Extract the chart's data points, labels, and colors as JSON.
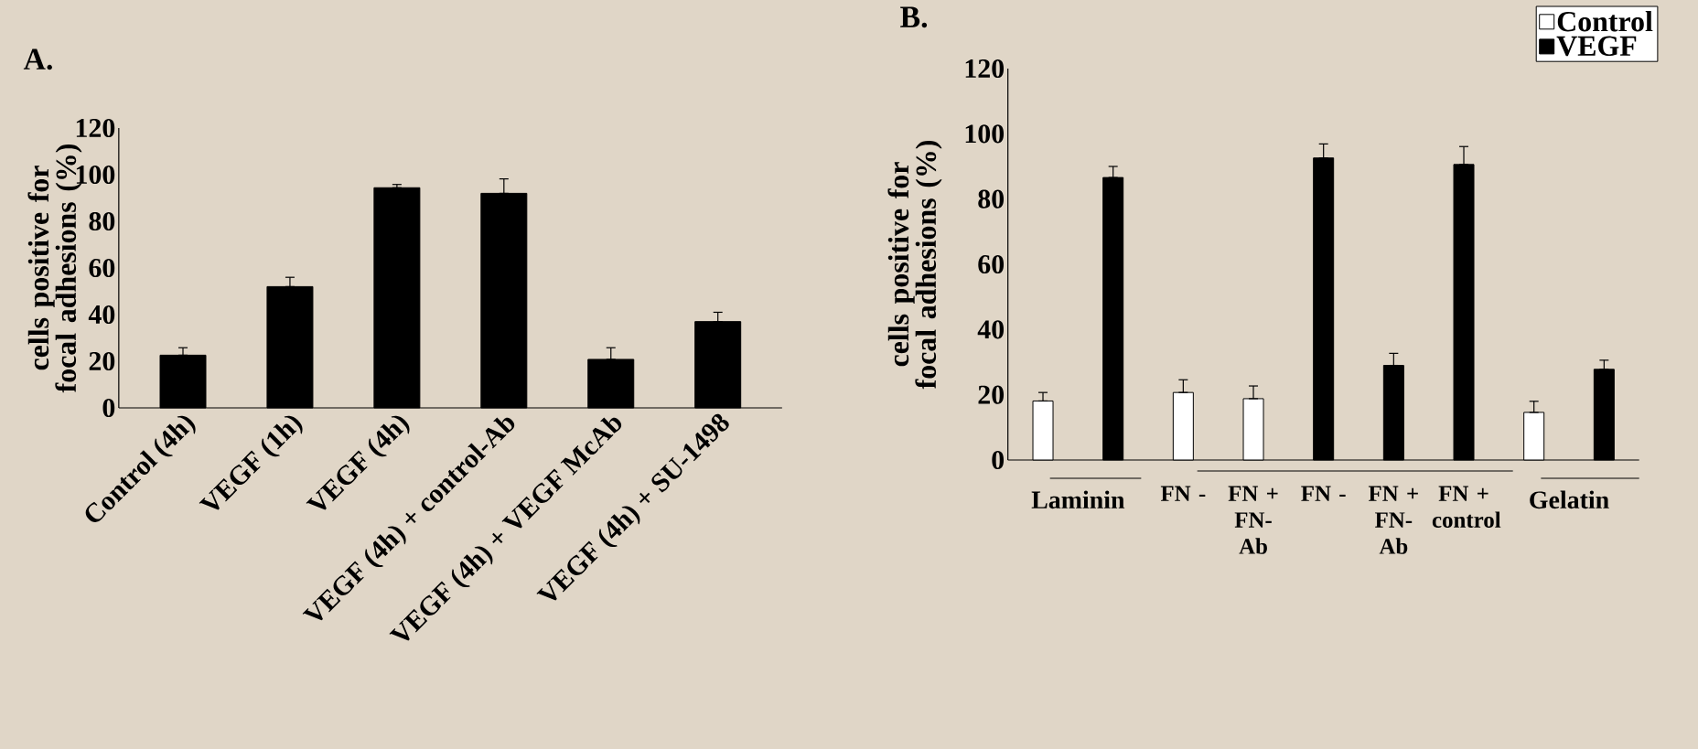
{
  "chart_data": [
    {
      "type": "bar",
      "title": "A.",
      "ylabel": "cells positive for focal adhesions (%)",
      "categories": [
        "Control (4h)",
        "VEGF (1h)",
        "VEGF (4h)",
        "VEGF (4h) + control-Ab",
        "VEGF (4h) + VEGF McAb",
        "VEGF (4h) + SU-1498"
      ],
      "values": [
        22.6,
        52,
        94.4,
        92,
        20.8,
        37
      ],
      "color": "#000000",
      "errors": [
        [
          22.6,
          25.8
        ],
        [
          52,
          56
        ],
        [
          94.4,
          95.8
        ],
        [
          92,
          98.2
        ],
        [
          20.8,
          25.8
        ],
        [
          37,
          41
        ]
      ],
      "ylim": [
        0,
        120
      ],
      "yticks": [
        0,
        20,
        40,
        60,
        80,
        100,
        120
      ],
      "grid": false,
      "legend": false
    },
    {
      "type": "bar",
      "title": "B.",
      "ylabel": "cells positive for focal adhesions (%)",
      "categories": [
        null,
        null,
        "FN -",
        "FN + FN-Ab",
        "FN -",
        "FN + FN-Ab",
        "FN + control",
        null,
        null
      ],
      "series": [
        {
          "name": "Control",
          "color": "#ffffff",
          "values": [
            18.1,
            null,
            20.7,
            18.8,
            null,
            null,
            null,
            14.6,
            null
          ],
          "errors": [
            [
              18.1,
              20.7
            ],
            null,
            [
              20.7,
              24.6
            ],
            [
              18.8,
              22.7
            ],
            null,
            null,
            null,
            [
              14.6,
              18
            ],
            null
          ]
        },
        {
          "name": "VEGF",
          "color": "#000000",
          "values": [
            null,
            86.6,
            null,
            null,
            92.6,
            29,
            90.6,
            null,
            27.8
          ],
          "errors": [
            null,
            [
              86.6,
              90
            ],
            null,
            null,
            [
              92.6,
              96.9
            ],
            [
              29,
              32.7
            ],
            [
              90.6,
              96.1
            ],
            null,
            [
              27.8,
              30.6
            ]
          ]
        }
      ],
      "annotations": [
        "Laminin",
        "Gelatin"
      ],
      "ylim": [
        0,
        120
      ],
      "yticks": [
        0,
        20,
        40,
        60,
        80,
        100,
        120
      ],
      "grid": false,
      "legend": "top right"
    }
  ]
}
